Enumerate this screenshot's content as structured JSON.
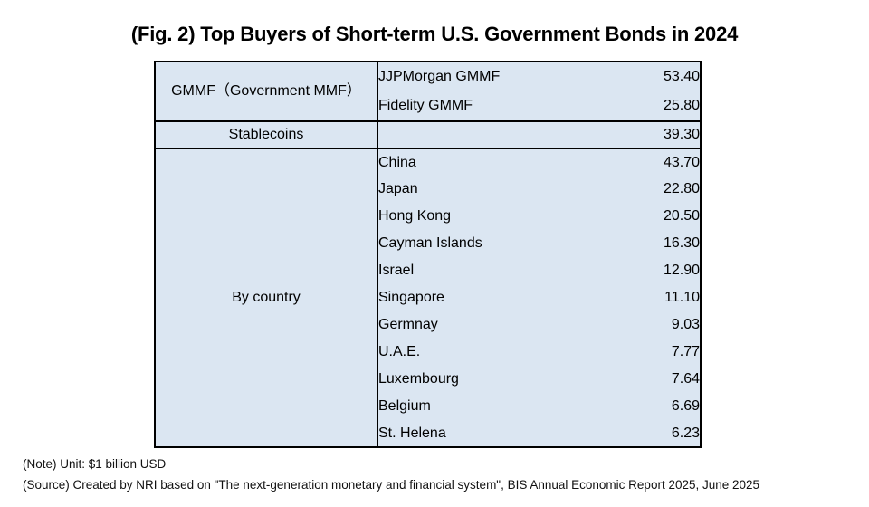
{
  "title": "(Fig. 2) Top Buyers of Short-term U.S. Government Bonds in 2024",
  "chart_data": {
    "type": "table",
    "title": "(Fig. 2) Top Buyers of Short-term U.S. Government Bonds in 2024",
    "unit": "$1 billion USD",
    "groups": [
      {
        "category": "GMMF（Government MMF）",
        "rows": [
          {
            "name": "JJPMorgan GMMF",
            "value": "53.40"
          },
          {
            "name": "Fidelity GMMF",
            "value": "25.80"
          }
        ]
      },
      {
        "category": "Stablecoins",
        "rows": [
          {
            "name": "",
            "value": "39.30"
          }
        ]
      },
      {
        "category": "By country",
        "rows": [
          {
            "name": "China",
            "value": "43.70"
          },
          {
            "name": "Japan",
            "value": "22.80"
          },
          {
            "name": "Hong Kong",
            "value": "20.50"
          },
          {
            "name": "Cayman Islands",
            "value": "16.30"
          },
          {
            "name": "Israel",
            "value": "12.90"
          },
          {
            "name": "Singapore",
            "value": "11.10"
          },
          {
            "name": "Germnay",
            "value": "9.03"
          },
          {
            "name": "U.A.E.",
            "value": "7.77"
          },
          {
            "name": "Luxembourg",
            "value": "7.64"
          },
          {
            "name": "Belgium",
            "value": "6.69"
          },
          {
            "name": "St. Helena",
            "value": "6.23"
          }
        ]
      }
    ]
  },
  "notes": {
    "unit": "(Note) Unit: $1 billion USD",
    "source": "(Source) Created by NRI based on \"The next-generation monetary and financial system\", BIS Annual Economic Report 2025, June 2025"
  },
  "colors": {
    "cell_fill": "#dbe6f2",
    "border": "#000000",
    "text": "#000000"
  }
}
